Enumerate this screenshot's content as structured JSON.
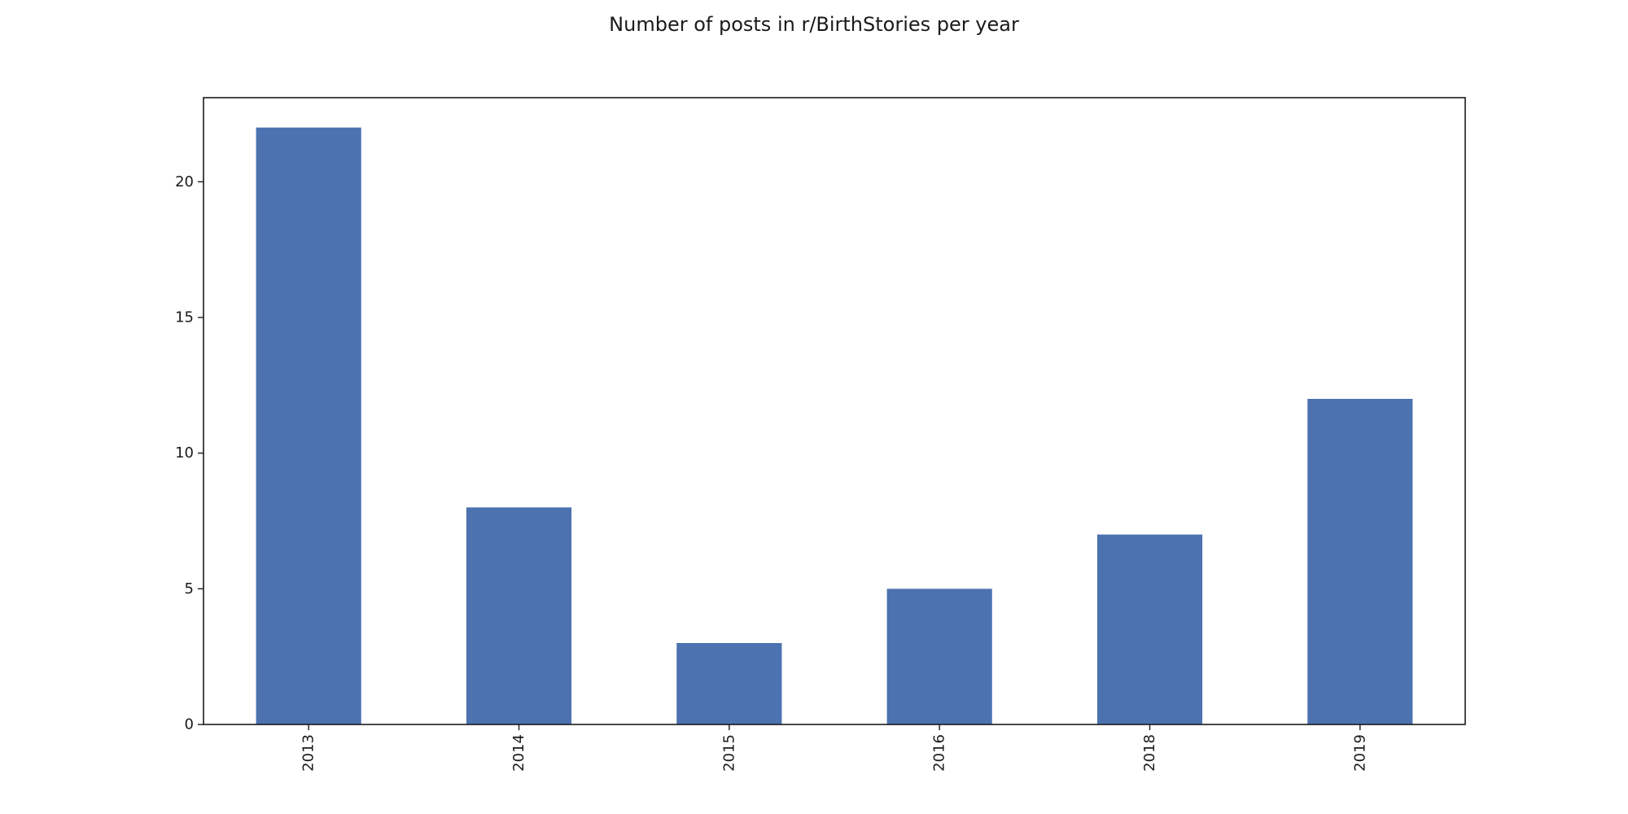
{
  "chart_data": {
    "type": "bar",
    "title": "Number of posts in r/BirthStories per year",
    "xlabel": "",
    "ylabel": "",
    "categories": [
      "2013",
      "2014",
      "2015",
      "2016",
      "2018",
      "2019"
    ],
    "values": [
      22,
      8,
      3,
      5,
      7,
      12
    ],
    "ylim": [
      0,
      23.1
    ],
    "yticks": [
      0,
      5,
      10,
      15,
      20
    ],
    "bar_color": "#4c72b0",
    "grid": false,
    "legend": "none",
    "xtick_rotation": "vertical"
  }
}
